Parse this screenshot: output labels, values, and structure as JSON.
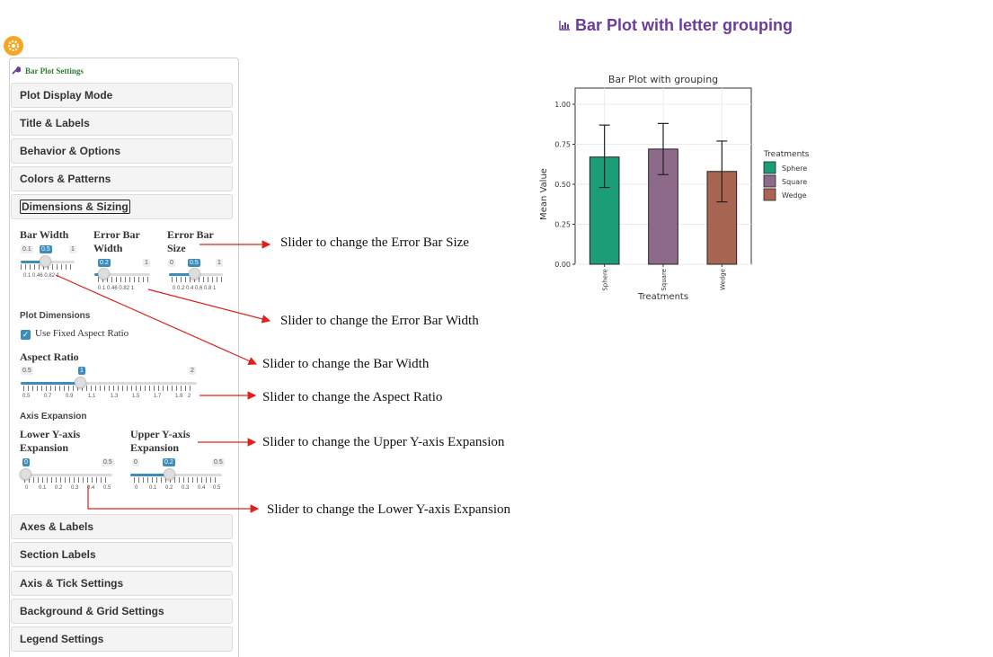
{
  "settings_panel": {
    "header": "Bar Plot Settings",
    "sections": [
      {
        "label": "Plot Display Mode"
      },
      {
        "label": "Title & Labels"
      },
      {
        "label": "Behavior & Options"
      },
      {
        "label": "Colors & Patterns"
      },
      {
        "label": "Dimensions & Sizing"
      },
      {
        "label": "Axes & Labels"
      },
      {
        "label": "Section Labels"
      },
      {
        "label": "Axis & Tick Settings"
      },
      {
        "label": "Background & Grid Settings"
      },
      {
        "label": "Legend Settings"
      }
    ],
    "dimensions": {
      "bar_width": {
        "label": "Bar Width",
        "min": "0.1",
        "max": "1",
        "value": "0.5",
        "value_num": 0.5,
        "tick_labels": "0.1  0.46  0.82 1"
      },
      "error_bar_width": {
        "label_line1": "Error Bar",
        "label_line2": "Width",
        "min": "0.1",
        "max": "1",
        "value": "0.2",
        "value_num": 0.2,
        "tick_labels": "0.1  0.46  0.82 1"
      },
      "error_bar_size": {
        "label_line1": "Error Bar",
        "label_line2": "Size",
        "min": "0",
        "max": "1",
        "value": "0.5",
        "value_num": 0.5,
        "tick_labels": "0  0.2 0.4 0.6 0.8  1"
      },
      "plot_dimensions_label": "Plot Dimensions",
      "fixed_aspect_label": "Use Fixed Aspect Ratio",
      "fixed_aspect_checked": true,
      "aspect_ratio": {
        "label": "Aspect Ratio",
        "min": "0.5",
        "max": "2",
        "value": "1",
        "value_num": 1,
        "tick_labels": [
          "0.5",
          "0.7",
          "0.9",
          "1.1",
          "1.3",
          "1.5",
          "1.7",
          "1.9",
          "2"
        ]
      },
      "axis_expansion_label": "Axis Expansion",
      "lower_y": {
        "label_line1": "Lower Y-axis",
        "label_line2": "Expansion",
        "min": "0",
        "max": "0.5",
        "value": "0",
        "value_num": 0,
        "tick_labels": [
          "0",
          "0.1",
          "0.2",
          "0.3",
          "0.4",
          "0.5"
        ]
      },
      "upper_y": {
        "label_line1": "Upper Y-axis",
        "label_line2": "Expansion",
        "min": "0",
        "max": "0.5",
        "value": "0.2",
        "value_num": 0.2,
        "tick_labels": [
          "0",
          "0.1",
          "0.2",
          "0.3",
          "0.4",
          "0.5"
        ]
      }
    }
  },
  "annotations": {
    "error_bar_size": "Slider to change the Error Bar Size",
    "error_bar_width": "Slider to change the Error Bar Width",
    "bar_width": "Slider to change the Bar Width",
    "aspect_ratio": "Slider to change the Aspect Ratio",
    "upper_y": "Slider to change the Upper Y-axis Expansion",
    "lower_y": "Slider to change the Lower Y-axis Expansion",
    "arrow_color": "#e0201c"
  },
  "page_title": "Bar Plot with letter grouping",
  "chart_data": {
    "type": "bar",
    "title": "Bar Plot with grouping",
    "xlabel": "Treatments",
    "ylabel": "Mean Value",
    "categories": [
      "Sphere",
      "Square",
      "Wedge"
    ],
    "values": [
      0.67,
      0.72,
      0.58
    ],
    "error_upper": [
      0.87,
      0.88,
      0.77
    ],
    "error_lower": [
      0.48,
      0.56,
      0.39
    ],
    "ylim": [
      0,
      1.0
    ],
    "yticks": [
      "0.00",
      "0.25",
      "0.50",
      "0.75",
      "1.00"
    ],
    "colors": [
      "#1b9e77",
      "#8e6a8a",
      "#a86551"
    ],
    "legend_title": "Treatments",
    "legend_position": "right",
    "grid": true
  }
}
